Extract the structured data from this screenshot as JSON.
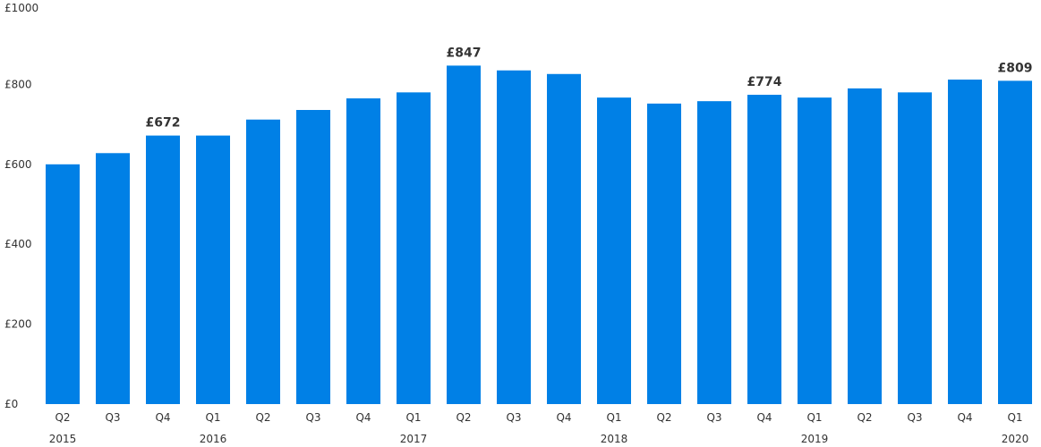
{
  "chart_data": {
    "type": "bar",
    "categories": [
      "Q2",
      "Q3",
      "Q4",
      "Q1",
      "Q2",
      "Q3",
      "Q4",
      "Q1",
      "Q2",
      "Q3",
      "Q4",
      "Q1",
      "Q2",
      "Q3",
      "Q4",
      "Q1",
      "Q2",
      "Q3",
      "Q4",
      "Q1"
    ],
    "years": [
      {
        "label": "2015",
        "index": 0
      },
      {
        "label": "2016",
        "index": 3
      },
      {
        "label": "2017",
        "index": 7
      },
      {
        "label": "2018",
        "index": 11
      },
      {
        "label": "2019",
        "index": 15
      },
      {
        "label": "2020",
        "index": 19
      }
    ],
    "values": [
      600,
      628,
      672,
      672,
      712,
      736,
      765,
      780,
      847,
      835,
      826,
      767,
      752,
      758,
      774,
      767,
      790,
      780,
      812,
      809
    ],
    "data_labels": [
      {
        "index": 2,
        "text": "£672"
      },
      {
        "index": 8,
        "text": "£847"
      },
      {
        "index": 14,
        "text": "£774"
      },
      {
        "index": 19,
        "text": "£809"
      }
    ],
    "yticks": [
      {
        "value": 0,
        "label": "£0"
      },
      {
        "value": 200,
        "label": "£200"
      },
      {
        "value": 400,
        "label": "£400"
      },
      {
        "value": 600,
        "label": "£600"
      },
      {
        "value": 800,
        "label": "£800"
      },
      {
        "value": 1000,
        "label": "£1000"
      }
    ],
    "ylim": [
      0,
      1000
    ],
    "grid": false,
    "bar_color": "#0080E6"
  }
}
